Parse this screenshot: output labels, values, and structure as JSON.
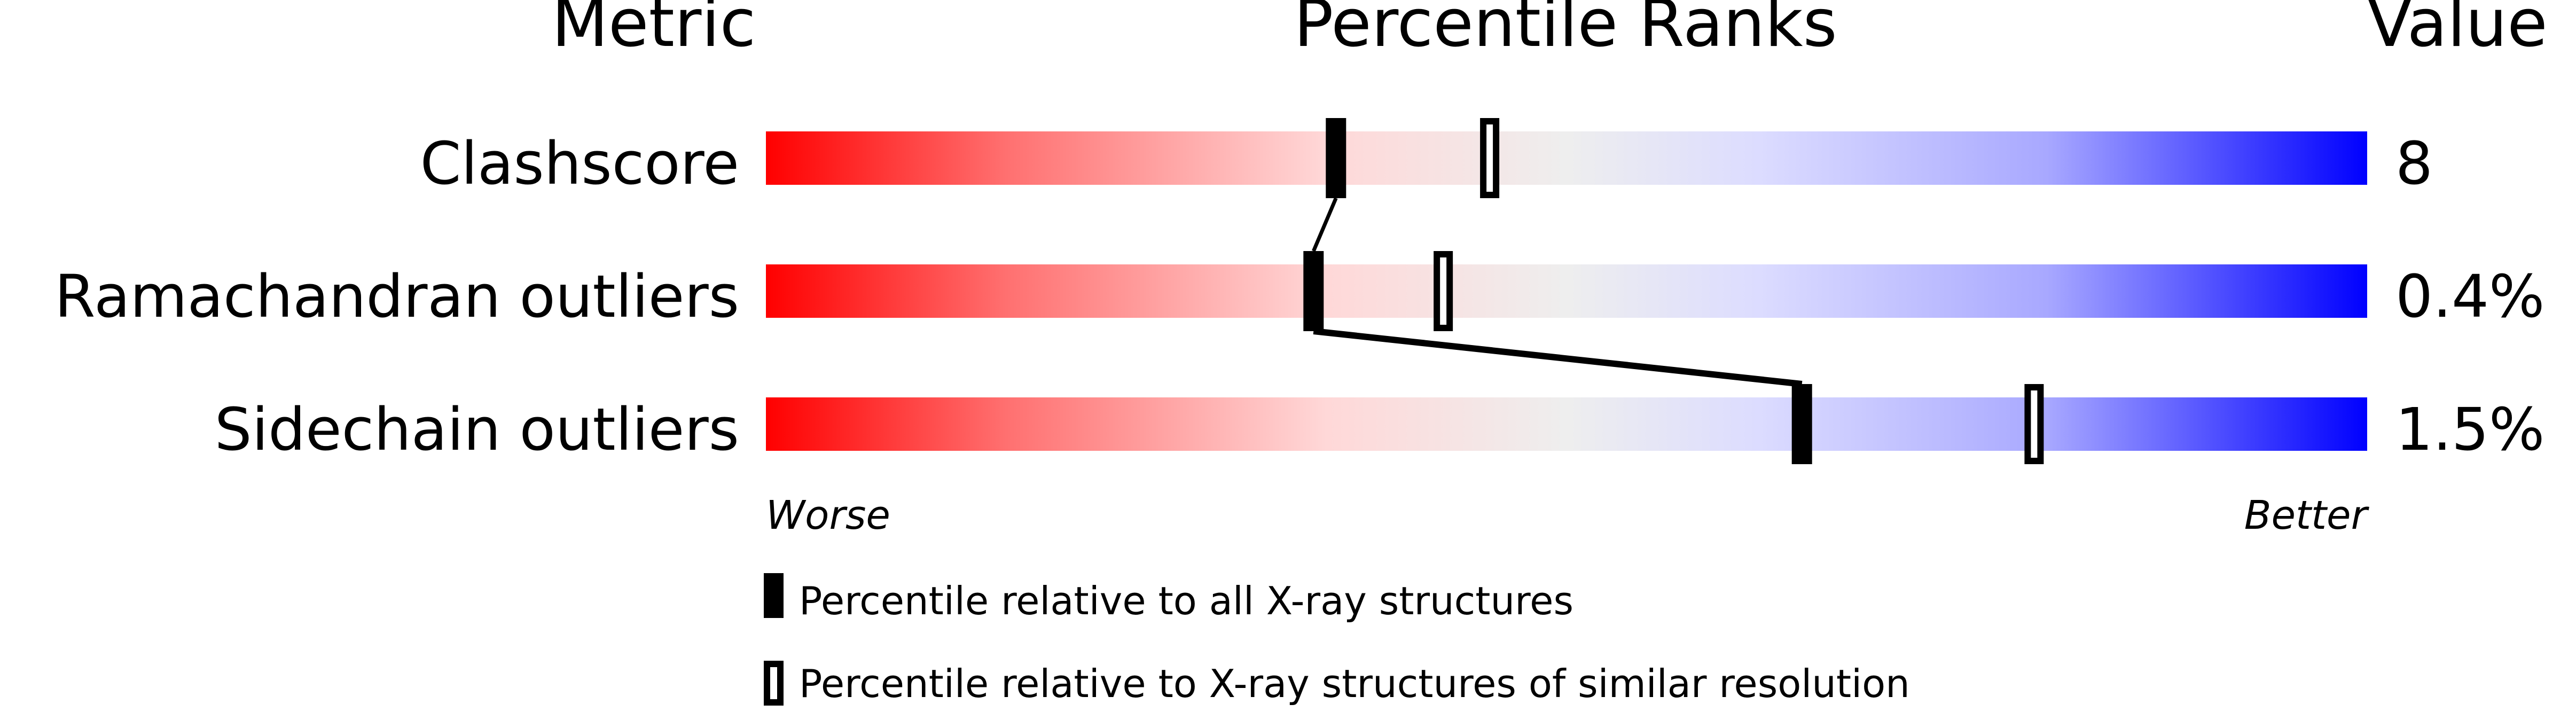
{
  "chart_data": {
    "type": "percentile-ranks",
    "headers": {
      "metric": "Metric",
      "ranks": "Percentile Ranks",
      "value": "Value"
    },
    "xlim": [
      0,
      100
    ],
    "axis_labels": {
      "left": "Worse",
      "right": "Better"
    },
    "rows": [
      {
        "metric": "Clashscore",
        "value": "8",
        "percentile_all": 35.6,
        "percentile_similar": 45.2
      },
      {
        "metric": "Ramachandran outliers",
        "value": "0.4%",
        "percentile_all": 34.2,
        "percentile_similar": 42.3
      },
      {
        "metric": "Sidechain outliers",
        "value": "1.5%",
        "percentile_all": 64.7,
        "percentile_similar": 79.2
      }
    ],
    "legend": {
      "all": "Percentile relative to all X-ray structures",
      "similar": "Percentile relative to X-ray structures of similar resolution"
    },
    "gradient_colors": [
      "#ff0000",
      "#ff7070",
      "#ffd8d8",
      "#eeeeee",
      "#dcdcff",
      "#a8a8ff",
      "#0000ff"
    ]
  }
}
